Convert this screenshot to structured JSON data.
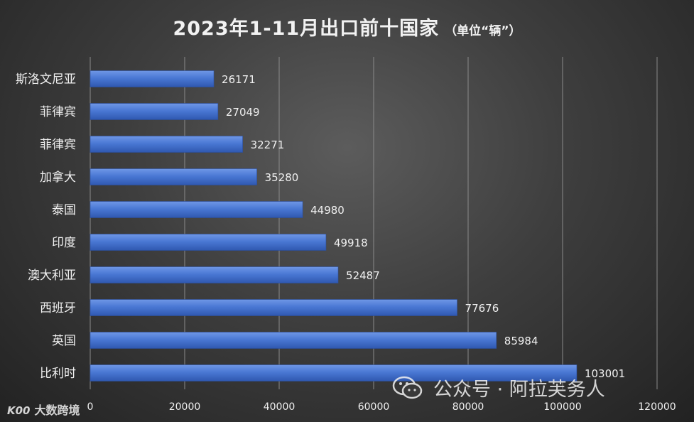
{
  "chart_data": {
    "type": "bar",
    "orientation": "horizontal",
    "title": "2023年1-11月出口前十国家",
    "subtitle": "（单位“辆”）",
    "categories": [
      "斯洛文尼亚",
      "菲律宾",
      "菲律宾",
      "加拿大",
      "泰国",
      "印度",
      "澳大利亚",
      "西班牙",
      "英国",
      "比利时"
    ],
    "values": [
      26171,
      27049,
      32271,
      35280,
      44980,
      49918,
      52487,
      77676,
      85984,
      103001
    ],
    "xlim": [
      0,
      120000
    ],
    "xticks": [
      0,
      20000,
      40000,
      60000,
      80000,
      100000,
      120000
    ],
    "xlabel": "",
    "ylabel": "",
    "grid": true,
    "bar_color": "#4a78d4"
  },
  "watermarks": {
    "left_logo": "K00",
    "left_text": "大数跨境",
    "right_text": "公众号 · 阿拉芙务人"
  }
}
